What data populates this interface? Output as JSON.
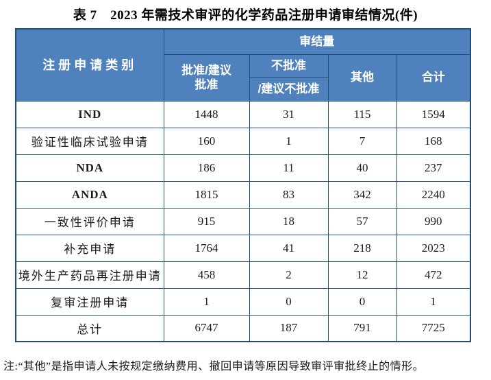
{
  "title": "表 7　2023 年需技术审评的化学药品注册申请审结情况(件)",
  "table": {
    "header": {
      "category": "注册申请类别",
      "group": "审结量",
      "approved_line1": "批准/建议",
      "approved_line2": "批准",
      "rejected_line1": "不批准",
      "rejected_line2": "/建议不批准",
      "other": "其他",
      "total": "合计"
    },
    "rows": [
      {
        "label": "IND",
        "approved": "1448",
        "rejected": "31",
        "other": "115",
        "total": "1594"
      },
      {
        "label": "验证性临床试验申请",
        "approved": "160",
        "rejected": "1",
        "other": "7",
        "total": "168"
      },
      {
        "label": "NDA",
        "approved": "186",
        "rejected": "11",
        "other": "40",
        "total": "237"
      },
      {
        "label": "ANDA",
        "approved": "1815",
        "rejected": "83",
        "other": "342",
        "total": "2240"
      },
      {
        "label": "一致性评价申请",
        "approved": "915",
        "rejected": "18",
        "other": "57",
        "total": "990"
      },
      {
        "label": "补充申请",
        "approved": "1764",
        "rejected": "41",
        "other": "218",
        "total": "2023"
      },
      {
        "label": "境外生产药品再注册申请",
        "approved": "458",
        "rejected": "2",
        "other": "12",
        "total": "472"
      },
      {
        "label": "复审注册申请",
        "approved": "1",
        "rejected": "0",
        "other": "0",
        "total": "1"
      },
      {
        "label": "总计",
        "approved": "6747",
        "rejected": "187",
        "other": "791",
        "total": "7725"
      }
    ]
  },
  "note": "注:“其他”是指申请人未按规定缴纳费用、撤回申请等原因导致审评审批终止的情形。",
  "colors": {
    "header_bg": "#4F81BD",
    "border": "#1F4E79",
    "header_text": "#FFFFFF",
    "body_text": "#1A1A1A"
  }
}
